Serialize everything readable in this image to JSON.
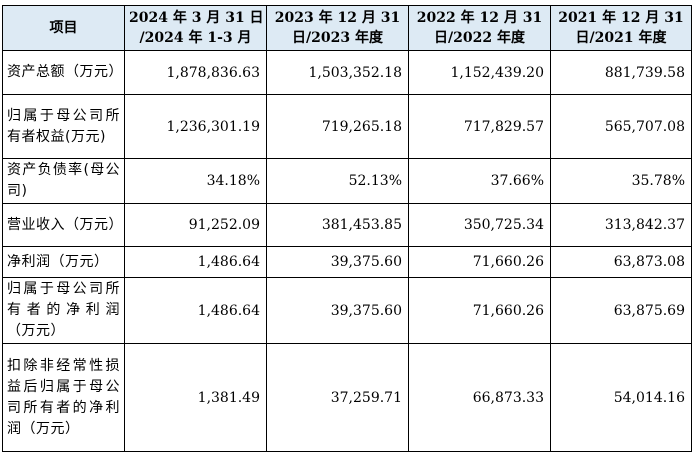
{
  "table": {
    "headers": [
      "项目",
      "2024年3月31日/2024年1-3月",
      "2023年12月31日/2023年度",
      "2022年12月31日/2022年度",
      "2021年12月31日/2021年度"
    ],
    "header_lines": [
      [
        "项目"
      ],
      [
        "2024 年 3 月 31 日",
        "/2024 年 1-3 月"
      ],
      [
        "2023 年 12 月 31",
        "日/2023 年度"
      ],
      [
        "2022 年 12 月 31",
        "日/2022 年度"
      ],
      [
        "2021 年 12 月 31",
        "日/2021 年度"
      ]
    ],
    "rows": [
      {
        "label": "资产总额（万元）",
        "values": [
          "1,878,836.63",
          "1,503,352.18",
          "1,152,439.20",
          "881,739.58"
        ]
      },
      {
        "label": "归属于母公司所有者权益(万元)",
        "values": [
          "1,236,301.19",
          "719,265.18",
          "717,829.57",
          "565,707.08"
        ]
      },
      {
        "label": "资产负债率(母公司)",
        "values": [
          "34.18%",
          "52.13%",
          "37.66%",
          "35.78%"
        ]
      },
      {
        "label": "营业收入（万元）",
        "values": [
          "91,252.09",
          "381,453.85",
          "350,725.34",
          "313,842.37"
        ]
      },
      {
        "label": "净利润（万元）",
        "values": [
          "1,486.64",
          "39,375.60",
          "71,660.26",
          "63,873.08"
        ]
      },
      {
        "label": "归属于母公司所有者的净利润（万元）",
        "values": [
          "1,486.64",
          "39,375.60",
          "71,660.26",
          "63,875.69"
        ]
      },
      {
        "label": "扣除非经常性损益后归属于母公司所有者的净利润（万元）",
        "values": [
          "1,381.49",
          "37,259.71",
          "66,873.33",
          "54,014.16"
        ]
      }
    ]
  }
}
